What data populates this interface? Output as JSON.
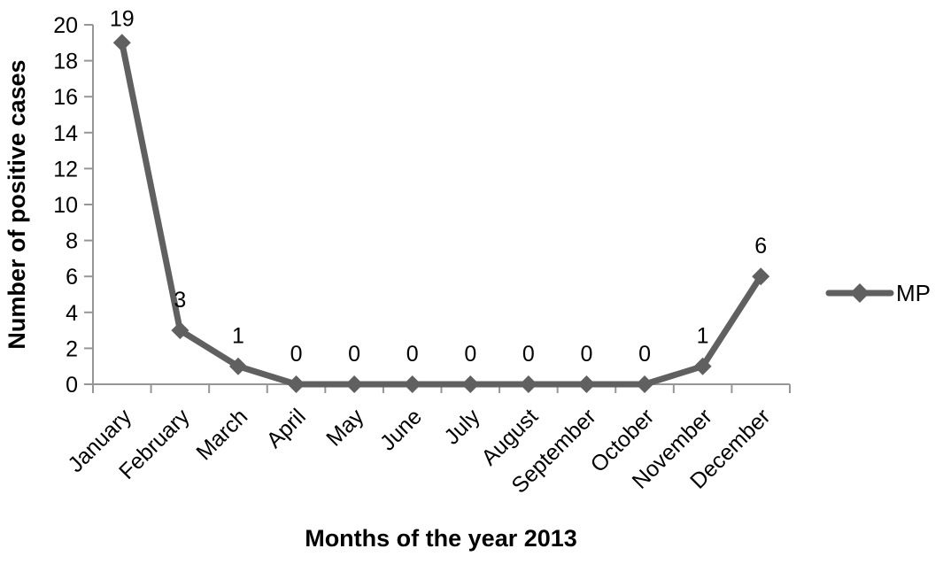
{
  "chart_data": {
    "type": "line",
    "categories": [
      "January",
      "February",
      "March",
      "April",
      "May",
      "June",
      "July",
      "August",
      "September",
      "October",
      "November",
      "December"
    ],
    "series": [
      {
        "name": "MP",
        "values": [
          19,
          3,
          1,
          0,
          0,
          0,
          0,
          0,
          0,
          0,
          1,
          6
        ]
      }
    ],
    "data_labels_shown": true,
    "xlabel": "Months of the year 2013",
    "ylabel": "Number of positive cases",
    "ylim": [
      0,
      20
    ],
    "ytick_step": 2,
    "grid": false,
    "legend_position": "right",
    "marker": "diamond"
  },
  "colors": {
    "series": "#606060",
    "axis": "#969696",
    "text": "#000000",
    "background": "#ffffff"
  }
}
